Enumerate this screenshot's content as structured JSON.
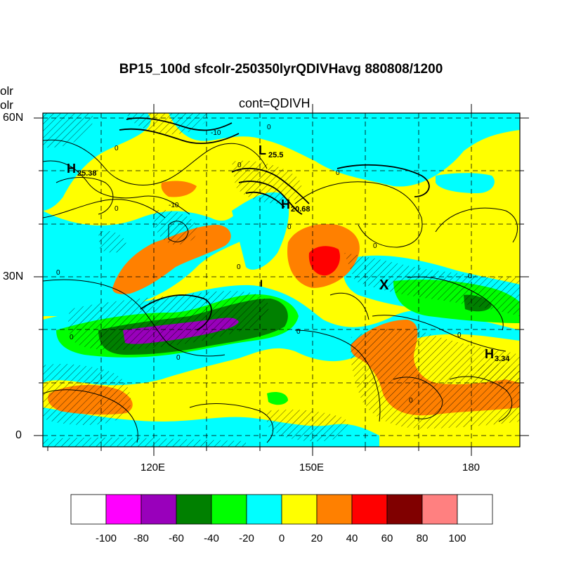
{
  "title": "BP15_100d sfcolr-250350lyrQDIVHavg  880808/1200",
  "subtitle": "cont=QDIVH",
  "left_cut_text": [
    "olr",
    "olr"
  ],
  "map": {
    "lat_labels": [
      "60N",
      "30N",
      "0"
    ],
    "lon_labels": [
      "120E",
      "150E",
      "180"
    ],
    "extent": {
      "lon": [
        100,
        190
      ],
      "lat": [
        -2,
        61
      ]
    },
    "markers": [
      {
        "letter": "H",
        "value": "25.38"
      },
      {
        "letter": "L",
        "value": "25.5"
      },
      {
        "letter": "H",
        "value": "20.68"
      },
      {
        "letter": "H",
        "value": "3.34"
      },
      {
        "letter": "X",
        "value": ""
      }
    ],
    "contour_labels": [
      "-10",
      "0",
      "0",
      "-10",
      "0",
      "0",
      "0",
      "0",
      "0",
      "0",
      "0",
      "0",
      "0",
      "0",
      "0",
      "0",
      "0"
    ]
  },
  "colorbar": {
    "levels": [
      "-100",
      "-80",
      "-60",
      "-40",
      "-20",
      "0",
      "20",
      "40",
      "60",
      "80",
      "100"
    ],
    "colors": [
      "#ffffff",
      "#ff00ff",
      "#9900bb",
      "#008000",
      "#00ff00",
      "#00ffff",
      "#ffff00",
      "#ff8000",
      "#ff0000",
      "#800000",
      "#ff8080",
      "#ffffff"
    ]
  }
}
